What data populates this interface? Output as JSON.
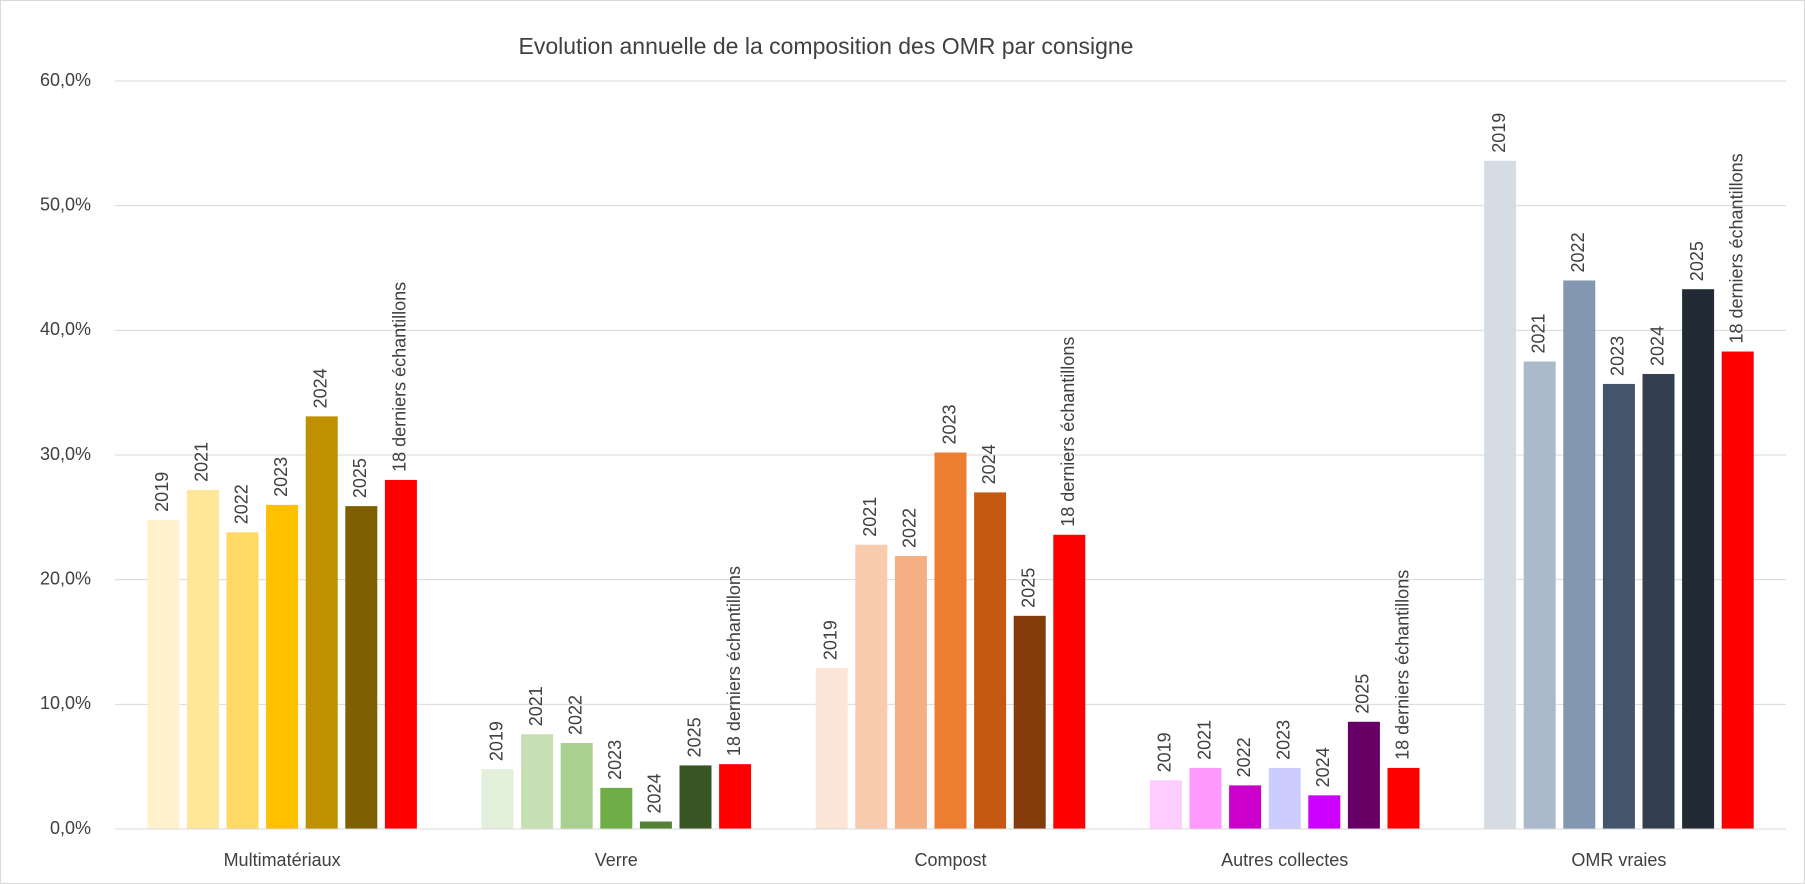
{
  "chart_data": {
    "type": "bar",
    "title": "Evolution annuelle de la composition des OMR par consigne",
    "categories": [
      "Multimatériaux",
      "Verre",
      "Compost",
      "Autres collectes",
      "OMR vraies"
    ],
    "series": [
      {
        "name": "2019",
        "colors": [
          "#FFF2CC",
          "#E2EFDA",
          "#FCE4D6",
          "#FFCCFF",
          "#D6DCE4"
        ],
        "values": [
          24.8,
          4.8,
          12.9,
          3.9,
          53.6
        ]
      },
      {
        "name": "2021",
        "colors": [
          "#FFE699",
          "#C6E0B4",
          "#F8CBAD",
          "#FF99FF",
          "#ACB9CA"
        ],
        "values": [
          27.2,
          7.6,
          22.8,
          4.9,
          37.5
        ]
      },
      {
        "name": "2022",
        "colors": [
          "#FFD966",
          "#A9D08E",
          "#F4B084",
          "#CC00CC",
          "#8497B0"
        ],
        "values": [
          23.8,
          6.9,
          21.9,
          3.5,
          44.0
        ]
      },
      {
        "name": "2023",
        "colors": [
          "#FFC000",
          "#70AD47",
          "#ED7D31",
          "#CCCCFF",
          "#44546A"
        ],
        "values": [
          26.0,
          3.3,
          30.2,
          4.9,
          35.7
        ]
      },
      {
        "name": "2024",
        "colors": [
          "#BF9000",
          "#548235",
          "#C65911",
          "#CC00FF",
          "#333F4F"
        ],
        "values": [
          33.1,
          0.6,
          27.0,
          2.7,
          36.5
        ]
      },
      {
        "name": "2025",
        "colors": [
          "#7F6000",
          "#375623",
          "#843C0C",
          "#660066",
          "#222B35"
        ],
        "values": [
          25.9,
          5.1,
          17.1,
          8.6,
          43.3
        ]
      },
      {
        "name": "18 derniers échantillons",
        "colors": [
          "#FF0000",
          "#FF0000",
          "#FF0000",
          "#FF0000",
          "#FF0000"
        ],
        "values": [
          28.0,
          5.2,
          23.6,
          4.9,
          38.3
        ]
      }
    ],
    "ylim": [
      0,
      60
    ],
    "yticks": [
      {
        "value": 0,
        "label": "0,0%"
      },
      {
        "value": 10,
        "label": "10,0%"
      },
      {
        "value": 20,
        "label": "20,0%"
      },
      {
        "value": 30,
        "label": "30,0%"
      },
      {
        "value": 40,
        "label": "40,0%"
      },
      {
        "value": 50,
        "label": "50,0%"
      },
      {
        "value": 60,
        "label": "60,0%"
      }
    ],
    "grid": true
  }
}
